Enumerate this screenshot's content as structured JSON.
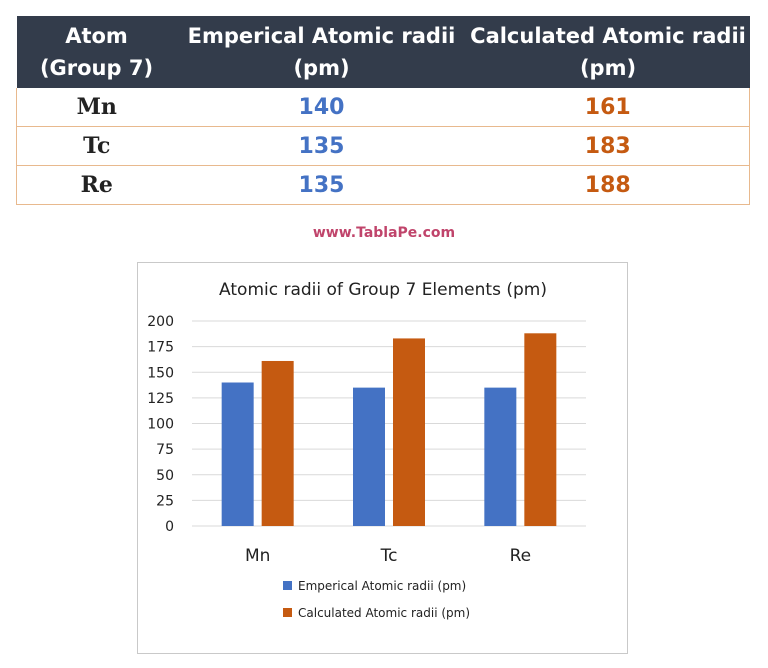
{
  "table": {
    "headers": [
      [
        "Atom",
        "(Group 7)"
      ],
      [
        "Emperical Atomic radii",
        "(pm)"
      ],
      [
        "Calculated Atomic radii",
        "(pm)"
      ]
    ],
    "rows": [
      {
        "atom": "Mn",
        "emperical": "140",
        "calculated": "161"
      },
      {
        "atom": "Tc",
        "emperical": "135",
        "calculated": "183"
      },
      {
        "atom": "Re",
        "emperical": "135",
        "calculated": "188"
      }
    ]
  },
  "website": "www.TablaPe.com",
  "colors": {
    "header_bg": "#333c4b",
    "emperical": "#4472c4",
    "calculated": "#c55a11",
    "website": "#c0446b",
    "row_border": "#e8b98e"
  },
  "chart_data": {
    "type": "bar",
    "title": "Atomic radii of Group 7 Elements (pm)",
    "categories": [
      "Mn",
      "Tc",
      "Re"
    ],
    "series": [
      {
        "name": "Emperical Atomic radii (pm)",
        "values": [
          140,
          135,
          135
        ],
        "color": "#4472c4"
      },
      {
        "name": "Calculated Atomic radii (pm)",
        "values": [
          161,
          183,
          188
        ],
        "color": "#c55a11"
      }
    ],
    "ylim": [
      0,
      200
    ],
    "yticks": [
      0,
      25,
      50,
      75,
      100,
      125,
      150,
      175,
      200
    ],
    "grid": true,
    "legend_position": "bottom"
  }
}
